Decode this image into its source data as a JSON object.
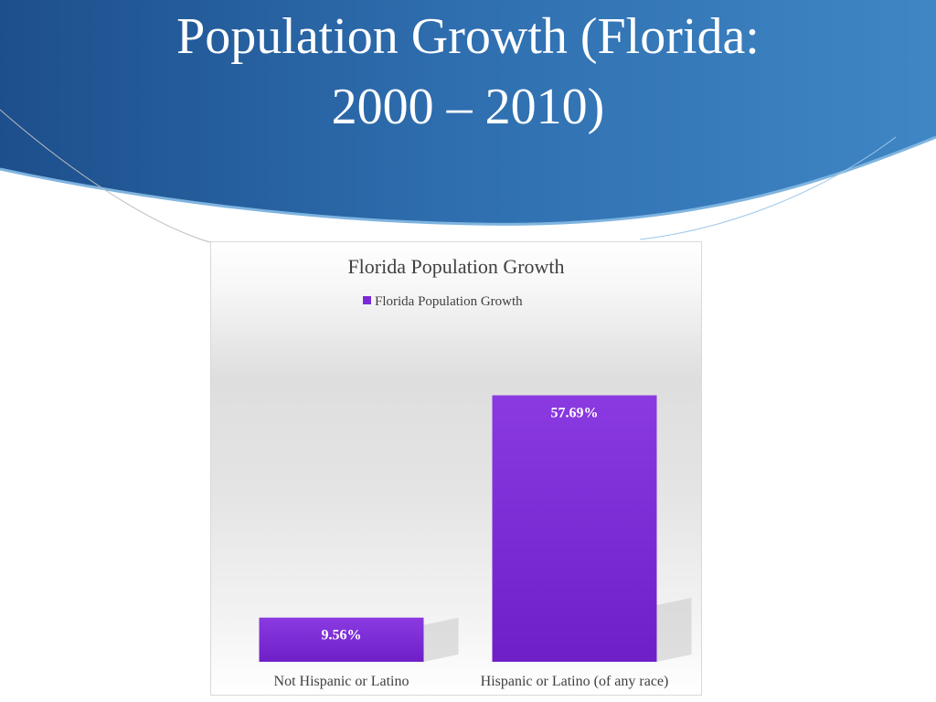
{
  "slide": {
    "title_line1": "Population Growth (Florida:",
    "title_line2": "2000 – 2010)"
  },
  "colors": {
    "banner_dark": "#1d4f8c",
    "banner_light": "#3f86c4",
    "bar_top": "#8a3ae0",
    "bar_bottom": "#6e1fc8",
    "text": "#404040"
  },
  "chart_data": {
    "type": "bar",
    "title": "Florida Population Growth",
    "legend": {
      "position": "top",
      "entries": [
        "Florida Population Growth"
      ]
    },
    "categories": [
      "Not Hispanic or Latino",
      "Hispanic or Latino (of any race)"
    ],
    "series": [
      {
        "name": "Florida Population Growth",
        "values": [
          9.56,
          57.69
        ],
        "labels": [
          "9.56%",
          "57.69%"
        ]
      }
    ],
    "ylim": [
      0,
      75
    ],
    "grid": false,
    "xlabel": "",
    "ylabel": ""
  }
}
